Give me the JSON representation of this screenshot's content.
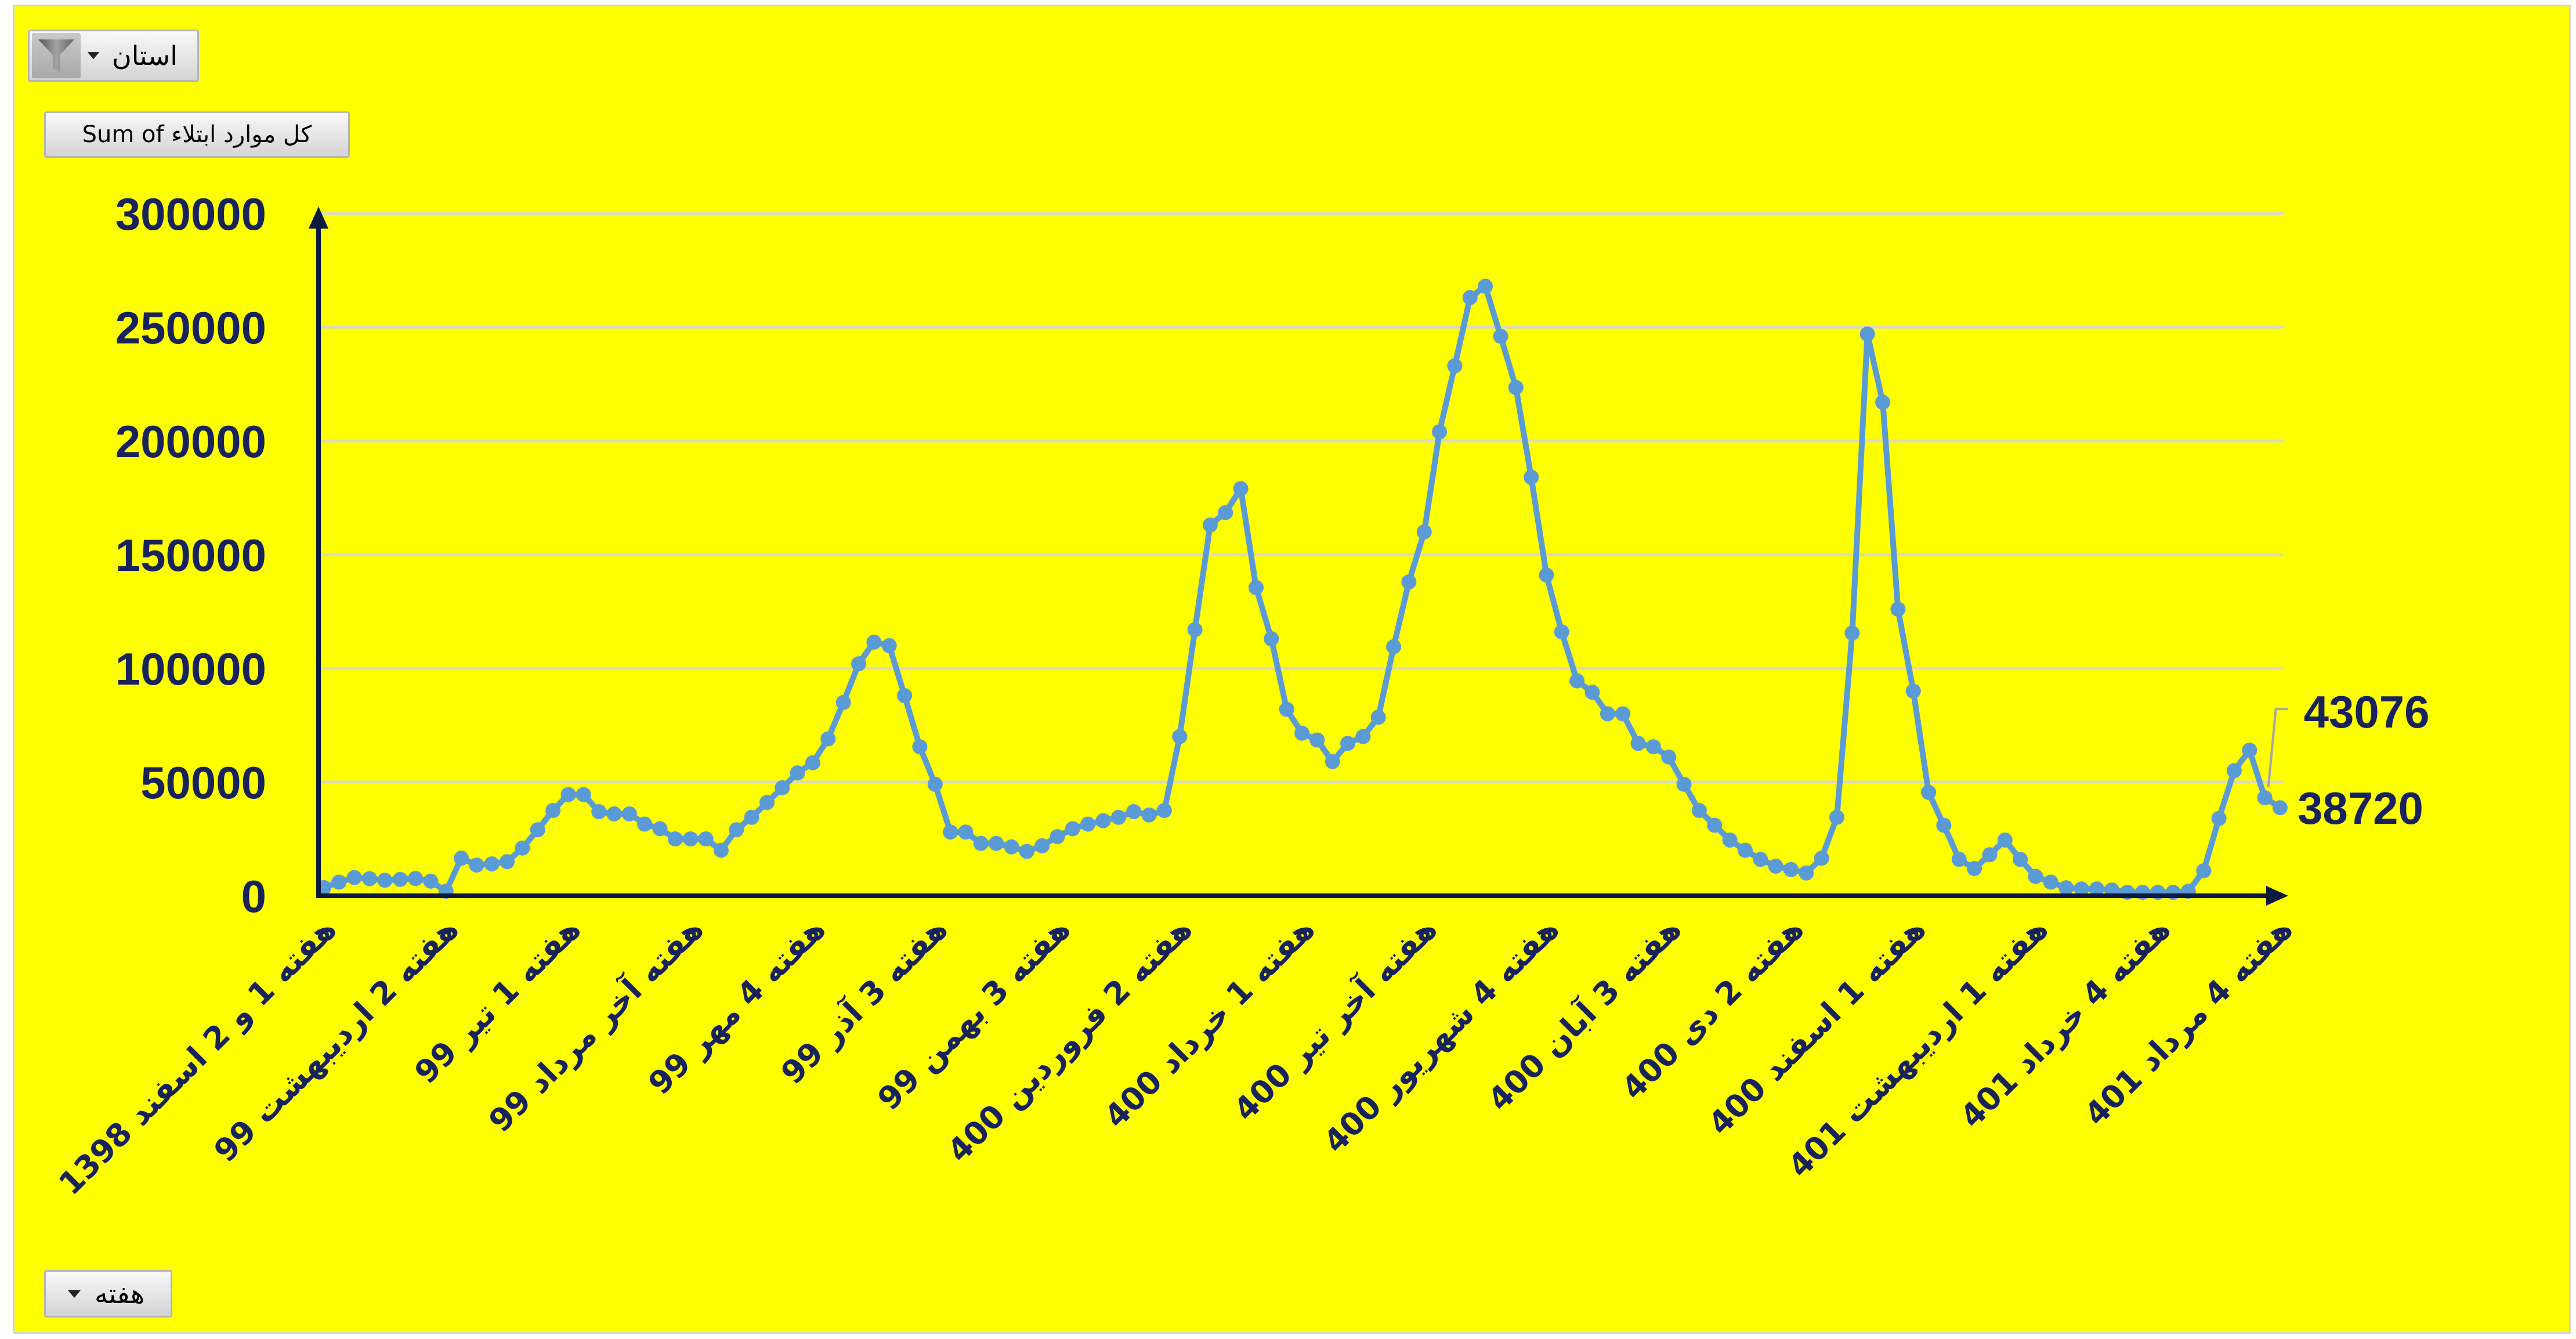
{
  "filters": {
    "province": {
      "label": "استان",
      "icon": "funnel-icon",
      "dropdown_icon": "chevron-down-icon"
    },
    "week": {
      "label": "هفته",
      "dropdown_icon": "chevron-down-icon"
    }
  },
  "value_field": {
    "label": "Sum of کل موارد ابتلاء"
  },
  "colors": {
    "background": "#FFFF00",
    "series_line": "#5B9BD5",
    "axis": "#0D1A3D",
    "label_text": "#17235A",
    "gridline": "#D9D9C6",
    "leader_line": "#A6A6A6"
  },
  "chart_data": {
    "type": "line",
    "ylim": [
      0,
      300000
    ],
    "y_ticks": [
      0,
      50000,
      100000,
      150000,
      200000,
      250000,
      300000
    ],
    "grid": true,
    "legend": "none",
    "x_tick_labels": [
      "هفته 1 و 2 اسفند 1398",
      "هفته 2 اردیبهشت 99",
      "هفته 1 تیر 99",
      "هفته آخر مرداد 99",
      "هفته 4 مهر 99",
      "هفته 3 آذر 99",
      "هفته 3 بهمن 99",
      "هفته 2 فروردین 400",
      "هفته 1 خرداد 400",
      "هفته آخر تیر 400",
      "هفته 4 شهریور 400",
      "هفته 3 آبان 400",
      "هفته 2 دی 400",
      "هفته 1 اسفند 400",
      "هفته 1 اردیبهشت 401",
      "هفته 4 خرداد 401",
      "هفته 4 مرداد 401"
    ],
    "series": [
      {
        "values": [
          3600,
          6000,
          8000,
          7500,
          6800,
          7200,
          7600,
          6400,
          2000,
          16500,
          13500,
          14000,
          15000,
          21000,
          29000,
          37500,
          44500,
          44500,
          37000,
          36000,
          36000,
          31500,
          29500,
          25000,
          25000,
          25000,
          20000,
          29000,
          34500,
          41000,
          47500,
          54000,
          58500,
          69000,
          85000,
          102000,
          111500,
          110000,
          88000,
          65500,
          49000,
          28000,
          28000,
          23000,
          23000,
          21500,
          19500,
          22000,
          26000,
          29500,
          31500,
          33000,
          34500,
          37000,
          35500,
          37500,
          70000,
          117000,
          163000,
          168500,
          179000,
          135500,
          113000,
          82000,
          71500,
          68500,
          59000,
          67000,
          70000,
          78500,
          109500,
          138000,
          160000,
          204000,
          233000,
          263000,
          268000,
          246000,
          223500,
          184000,
          141000,
          116000,
          94500,
          89500,
          80000,
          80000,
          67000,
          65500,
          61000,
          49000,
          37500,
          31000,
          24500,
          20000,
          16000,
          13000,
          11500,
          10000,
          16500,
          34500,
          115500,
          247000,
          217000,
          126000,
          90000,
          45500,
          31000,
          16000,
          12000,
          18000,
          24500,
          16000,
          8500,
          6000,
          3500,
          3000,
          3000,
          2500,
          1500,
          1500,
          1500,
          1500,
          2000,
          11000,
          34000,
          55000,
          64000,
          43076,
          38720
        ]
      }
    ],
    "data_labels": [
      {
        "index": 127,
        "value": 43076
      },
      {
        "index": 128,
        "value": 38720
      }
    ]
  }
}
